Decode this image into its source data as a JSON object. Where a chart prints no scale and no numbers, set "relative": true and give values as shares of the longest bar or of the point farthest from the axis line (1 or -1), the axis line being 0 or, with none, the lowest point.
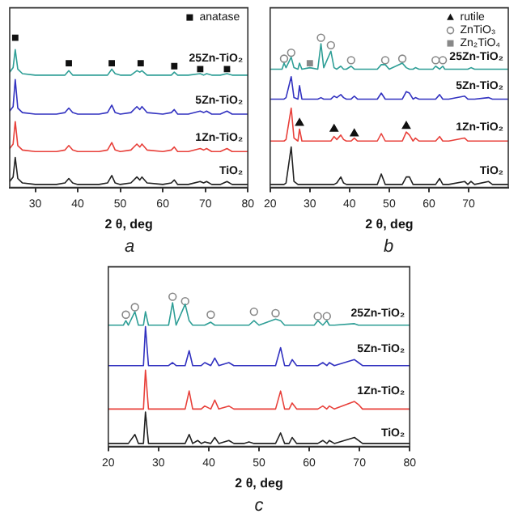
{
  "chart_data": [
    {
      "type": "line",
      "title": "a",
      "xlabel": "2 θ, deg",
      "relative": true,
      "marker": "none",
      "legend": "top right",
      "xlim": [
        24,
        80
      ],
      "xticks": [
        30,
        40,
        50,
        60,
        70,
        80
      ],
      "x": [
        24,
        24.8,
        25.3,
        25.9,
        27,
        30,
        35,
        37,
        37.9,
        38.8,
        40,
        45,
        47,
        48,
        48.8,
        50,
        52.5,
        53.9,
        54.6,
        55.1,
        56.3,
        60,
        62,
        62.7,
        63.5,
        66,
        68.8,
        69.6,
        70.3,
        71.5,
        73.5,
        75.1,
        76.3,
        80
      ],
      "series": [
        {
          "name": "TiO₂",
          "color": "#222222",
          "values": [
            0.04,
            0.07,
            0.2,
            0.06,
            0.03,
            0.02,
            0.02,
            0.03,
            0.06,
            0.03,
            0.02,
            0.02,
            0.03,
            0.08,
            0.03,
            0.02,
            0.03,
            0.07,
            0.05,
            0.07,
            0.03,
            0.02,
            0.03,
            0.05,
            0.02,
            0.02,
            0.04,
            0.03,
            0.04,
            0.02,
            0.02,
            0.04,
            0.02,
            0.02
          ]
        },
        {
          "name": "1Zn-TiO₂",
          "color": "#e8403a",
          "values": [
            0.26,
            0.29,
            0.44,
            0.28,
            0.25,
            0.24,
            0.24,
            0.25,
            0.28,
            0.25,
            0.24,
            0.24,
            0.25,
            0.3,
            0.25,
            0.24,
            0.25,
            0.29,
            0.27,
            0.29,
            0.25,
            0.24,
            0.25,
            0.27,
            0.24,
            0.24,
            0.26,
            0.25,
            0.26,
            0.24,
            0.24,
            0.26,
            0.24,
            0.24
          ]
        },
        {
          "name": "5Zn-TiO₂",
          "color": "#3232c0",
          "values": [
            0.51,
            0.54,
            0.72,
            0.53,
            0.5,
            0.49,
            0.49,
            0.5,
            0.53,
            0.5,
            0.49,
            0.49,
            0.5,
            0.55,
            0.5,
            0.49,
            0.5,
            0.54,
            0.52,
            0.54,
            0.5,
            0.49,
            0.5,
            0.52,
            0.49,
            0.49,
            0.51,
            0.5,
            0.51,
            0.49,
            0.49,
            0.51,
            0.49,
            0.49
          ]
        },
        {
          "name": "25Zn-TiO₂",
          "color": "#2e9e96",
          "values": [
            0.77,
            0.8,
            0.92,
            0.79,
            0.76,
            0.75,
            0.75,
            0.75,
            0.78,
            0.75,
            0.75,
            0.75,
            0.75,
            0.79,
            0.76,
            0.75,
            0.75,
            0.78,
            0.77,
            0.78,
            0.75,
            0.75,
            0.75,
            0.77,
            0.75,
            0.75,
            0.76,
            0.75,
            0.76,
            0.75,
            0.75,
            0.76,
            0.75,
            0.75
          ]
        },
        {
          "name": "anatase",
          "type": "scatter",
          "marker": "square",
          "color": "#111111",
          "x": [
            25.3,
            37.9,
            48,
            54.8,
            62.7,
            68.8,
            75.1
          ],
          "values": [
            1.0,
            0.83,
            0.83,
            0.83,
            0.81,
            0.79,
            0.79
          ]
        }
      ]
    },
    {
      "type": "line",
      "title": "b",
      "xlabel": "2 θ, deg",
      "relative": true,
      "marker": "none",
      "legend": "top right",
      "xlim": [
        20,
        80
      ],
      "xticks": [
        20,
        30,
        40,
        50,
        60,
        70
      ],
      "x": [
        20,
        23,
        23.5,
        24,
        25.3,
        26,
        27,
        27.4,
        28,
        30,
        32,
        32.8,
        33.5,
        35.3,
        36.1,
        36.8,
        37.8,
        38.5,
        39.2,
        40.4,
        41.2,
        42,
        44,
        45,
        47,
        48,
        49,
        50,
        53.3,
        54.3,
        55.1,
        56,
        56.6,
        57.5,
        61,
        61.7,
        62.7,
        63.5,
        64,
        65,
        69,
        69.8,
        70.6,
        71.5,
        75,
        76,
        80
      ],
      "series": [
        {
          "name": "TiO₂",
          "color": "#222222",
          "values": [
            0.02,
            0.02,
            0.02,
            0.03,
            0.27,
            0.04,
            0.02,
            0.02,
            0.02,
            0.02,
            0.02,
            0.02,
            0.02,
            0.02,
            0.02,
            0.03,
            0.07,
            0.03,
            0.02,
            0.02,
            0.02,
            0.02,
            0.02,
            0.02,
            0.02,
            0.09,
            0.02,
            0.02,
            0.02,
            0.07,
            0.07,
            0.02,
            0.02,
            0.02,
            0.02,
            0.02,
            0.06,
            0.02,
            0.02,
            0.02,
            0.04,
            0.02,
            0.04,
            0.02,
            0.04,
            0.02,
            0.02
          ]
        },
        {
          "name": "1Zn-TiO₂",
          "color": "#e8403a",
          "values": [
            0.31,
            0.31,
            0.31,
            0.32,
            0.53,
            0.33,
            0.31,
            0.39,
            0.31,
            0.31,
            0.31,
            0.31,
            0.31,
            0.31,
            0.34,
            0.32,
            0.35,
            0.32,
            0.31,
            0.31,
            0.33,
            0.31,
            0.31,
            0.31,
            0.31,
            0.36,
            0.31,
            0.31,
            0.31,
            0.37,
            0.35,
            0.31,
            0.33,
            0.31,
            0.31,
            0.31,
            0.34,
            0.31,
            0.31,
            0.31,
            0.33,
            0.31,
            0.31,
            0.31,
            0.31,
            0.31,
            0.31
          ]
        },
        {
          "name": "5Zn-TiO₂",
          "color": "#3232c0",
          "values": [
            0.59,
            0.59,
            0.59,
            0.6,
            0.74,
            0.6,
            0.59,
            0.68,
            0.59,
            0.59,
            0.59,
            0.6,
            0.59,
            0.59,
            0.61,
            0.6,
            0.62,
            0.6,
            0.59,
            0.59,
            0.61,
            0.59,
            0.59,
            0.59,
            0.59,
            0.63,
            0.59,
            0.59,
            0.59,
            0.64,
            0.63,
            0.59,
            0.6,
            0.59,
            0.59,
            0.59,
            0.62,
            0.59,
            0.59,
            0.59,
            0.61,
            0.59,
            0.59,
            0.59,
            0.6,
            0.59,
            0.59
          ]
        },
        {
          "name": "25Zn-TiO₂",
          "color": "#2e9e96",
          "values": [
            0.79,
            0.79,
            0.83,
            0.8,
            0.87,
            0.8,
            0.79,
            0.83,
            0.79,
            0.8,
            0.79,
            0.96,
            0.8,
            0.91,
            0.8,
            0.79,
            0.81,
            0.79,
            0.79,
            0.81,
            0.79,
            0.79,
            0.79,
            0.79,
            0.79,
            0.82,
            0.82,
            0.79,
            0.83,
            0.8,
            0.79,
            0.79,
            0.8,
            0.79,
            0.79,
            0.81,
            0.79,
            0.81,
            0.79,
            0.79,
            0.79,
            0.79,
            0.8,
            0.79,
            0.79,
            0.79,
            0.79
          ]
        },
        {
          "name": "rutile",
          "type": "scatter",
          "marker": "triangle",
          "color": "#111111",
          "x": [
            27.4,
            36.1,
            41.2,
            54.3
          ],
          "values": [
            0.43,
            0.39,
            0.36,
            0.41
          ]
        },
        {
          "name": "ZnTiO₃",
          "type": "scatter",
          "marker": "circle",
          "color": "#888888",
          "x": [
            23.5,
            25.3,
            32.8,
            35.3,
            40.4,
            49,
            53.3,
            61.7,
            63.5
          ],
          "values": [
            0.86,
            0.9,
            1.0,
            0.95,
            0.85,
            0.85,
            0.86,
            0.85,
            0.85
          ]
        },
        {
          "name": "Zn₂TiO₄",
          "type": "scatter",
          "marker": "square",
          "color": "#888888",
          "x": [
            30
          ],
          "values": [
            0.83
          ]
        }
      ]
    },
    {
      "type": "line",
      "title": "c",
      "xlabel": "2 θ, deg",
      "relative": true,
      "marker": "none",
      "xlim": [
        20,
        80
      ],
      "xticks": [
        20,
        30,
        40,
        50,
        60,
        70,
        80
      ],
      "x": [
        20,
        23,
        23.5,
        24,
        25.3,
        26,
        27,
        27.4,
        28,
        30,
        32,
        32.8,
        33.5,
        35.3,
        36.1,
        36.8,
        37.8,
        38.5,
        39.2,
        40.4,
        41.2,
        42,
        44,
        45,
        47,
        48,
        49,
        50,
        53.3,
        54.3,
        55.1,
        56,
        56.6,
        57.5,
        61,
        61.7,
        62.7,
        63.5,
        64,
        65,
        69,
        69.8,
        70.6,
        71.5,
        75,
        76,
        80
      ],
      "series": [
        {
          "name": "TiO₂",
          "color": "#222222",
          "values": [
            0.02,
            0.02,
            0.02,
            0.02,
            0.08,
            0.02,
            0.02,
            0.23,
            0.02,
            0.02,
            0.02,
            0.02,
            0.02,
            0.02,
            0.08,
            0.02,
            0.04,
            0.02,
            0.03,
            0.02,
            0.06,
            0.02,
            0.04,
            0.02,
            0.02,
            0.03,
            0.02,
            0.02,
            0.02,
            0.09,
            0.02,
            0.02,
            0.06,
            0.02,
            0.02,
            0.02,
            0.04,
            0.02,
            0.04,
            0.02,
            0.06,
            0.04,
            0.02,
            0.02,
            0.02,
            0.02,
            0.02
          ]
        },
        {
          "name": "1Zn-TiO₂",
          "color": "#e8403a",
          "values": [
            0.25,
            0.25,
            0.25,
            0.25,
            0.25,
            0.25,
            0.25,
            0.51,
            0.25,
            0.25,
            0.25,
            0.25,
            0.25,
            0.25,
            0.37,
            0.25,
            0.25,
            0.25,
            0.27,
            0.25,
            0.31,
            0.25,
            0.27,
            0.25,
            0.25,
            0.25,
            0.25,
            0.25,
            0.25,
            0.37,
            0.25,
            0.25,
            0.29,
            0.25,
            0.25,
            0.25,
            0.27,
            0.25,
            0.27,
            0.25,
            0.3,
            0.28,
            0.25,
            0.25,
            0.25,
            0.25,
            0.25
          ]
        },
        {
          "name": "5Zn-TiO₂",
          "color": "#3232c0",
          "values": [
            0.54,
            0.54,
            0.54,
            0.54,
            0.54,
            0.54,
            0.54,
            0.8,
            0.54,
            0.54,
            0.54,
            0.56,
            0.54,
            0.54,
            0.64,
            0.54,
            0.54,
            0.54,
            0.56,
            0.54,
            0.59,
            0.54,
            0.56,
            0.54,
            0.54,
            0.54,
            0.54,
            0.54,
            0.54,
            0.66,
            0.54,
            0.54,
            0.58,
            0.54,
            0.54,
            0.54,
            0.56,
            0.54,
            0.56,
            0.54,
            0.58,
            0.56,
            0.54,
            0.54,
            0.54,
            0.54,
            0.54
          ]
        },
        {
          "name": "25Zn-TiO₂",
          "color": "#2e9e96",
          "values": [
            0.81,
            0.81,
            0.84,
            0.81,
            0.9,
            0.81,
            0.81,
            0.9,
            0.81,
            0.81,
            0.81,
            0.96,
            0.81,
            0.95,
            0.84,
            0.81,
            0.81,
            0.81,
            0.81,
            0.83,
            0.81,
            0.81,
            0.81,
            0.81,
            0.81,
            0.81,
            0.84,
            0.81,
            0.85,
            0.84,
            0.81,
            0.81,
            0.81,
            0.81,
            0.81,
            0.84,
            0.81,
            0.84,
            0.81,
            0.81,
            0.82,
            0.81,
            0.81,
            0.81,
            0.81,
            0.81,
            0.81
          ]
        },
        {
          "type": "scatter",
          "marker": "circle",
          "color": "#888888",
          "x": [
            23.5,
            25.3,
            32.8,
            35.3,
            40.4,
            49,
            53.3,
            61.7,
            63.5
          ],
          "values": [
            0.88,
            0.93,
            1.0,
            0.97,
            0.88,
            0.9,
            0.89,
            0.87,
            0.87
          ]
        }
      ]
    }
  ]
}
